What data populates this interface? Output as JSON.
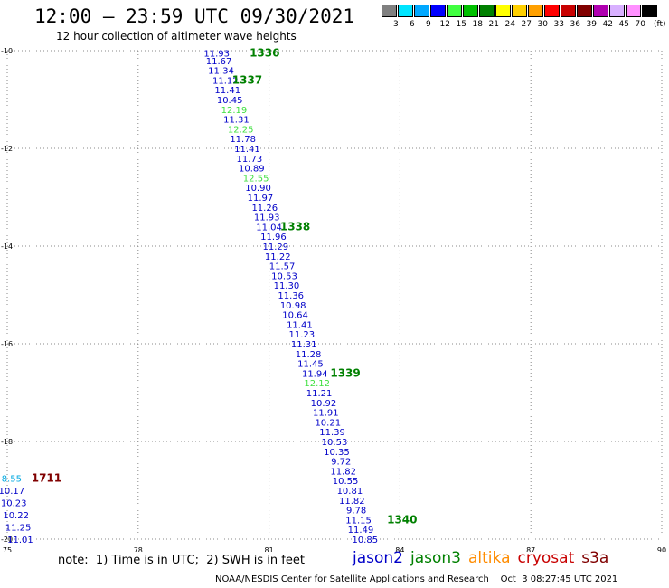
{
  "header": {
    "title": "12:00 – 23:59 UTC 09/30/2021",
    "subtitle": "12 hour collection of altimeter wave heights"
  },
  "colorbar": {
    "colors": [
      "#808080",
      "#00e5ff",
      "#00a8ff",
      "#0000ff",
      "#40ff40",
      "#00c000",
      "#008000",
      "#ffff00",
      "#ffd000",
      "#ffa000",
      "#ff0000",
      "#c80000",
      "#800000",
      "#b000b0",
      "#d8b0ff",
      "#ff90ff",
      "#000000"
    ],
    "labels": [
      "3",
      "6",
      "9",
      "12",
      "15",
      "18",
      "21",
      "24",
      "27",
      "30",
      "33",
      "36",
      "39",
      "42",
      "45",
      "70"
    ],
    "unit": "(ft)"
  },
  "chart_data": {
    "type": "scatter",
    "title": "12:00 – 23:59 UTC 09/30/2021",
    "xlim": [
      75,
      90
    ],
    "ylim": [
      -20,
      -10
    ],
    "xticks": [
      "75",
      "78",
      "81",
      "84",
      "87",
      "90"
    ],
    "yticks": [
      "-10",
      "-12",
      "-14",
      "-16",
      "-18",
      "-20"
    ],
    "grid": true,
    "points": [
      {
        "lon": 79.8,
        "lat": -10.05,
        "v": "11.93",
        "c": "#0000c8"
      },
      {
        "lon": 79.85,
        "lat": -10.2,
        "v": "11.67",
        "c": "#0000c8"
      },
      {
        "lon": 79.9,
        "lat": -10.4,
        "v": "11.34",
        "c": "#0000c8"
      },
      {
        "lon": 80.0,
        "lat": -10.6,
        "v": "11.12",
        "c": "#0000c8"
      },
      {
        "lon": 80.05,
        "lat": -10.8,
        "v": "11.41",
        "c": "#0000c8"
      },
      {
        "lon": 80.1,
        "lat": -11.0,
        "v": "10.45",
        "c": "#0000c8"
      },
      {
        "lon": 80.2,
        "lat": -11.2,
        "v": "12.19",
        "c": "#40e040"
      },
      {
        "lon": 80.25,
        "lat": -11.4,
        "v": "11.31",
        "c": "#0000c8"
      },
      {
        "lon": 80.35,
        "lat": -11.6,
        "v": "12.25",
        "c": "#40e040"
      },
      {
        "lon": 80.4,
        "lat": -11.8,
        "v": "11.78",
        "c": "#0000c8"
      },
      {
        "lon": 80.5,
        "lat": -12.0,
        "v": "11.41",
        "c": "#0000c8"
      },
      {
        "lon": 80.55,
        "lat": -12.2,
        "v": "11.73",
        "c": "#0000c8"
      },
      {
        "lon": 80.6,
        "lat": -12.4,
        "v": "10.89",
        "c": "#0000c8"
      },
      {
        "lon": 80.7,
        "lat": -12.6,
        "v": "12.55",
        "c": "#40e040"
      },
      {
        "lon": 80.75,
        "lat": -12.8,
        "v": "10.90",
        "c": "#0000c8"
      },
      {
        "lon": 80.8,
        "lat": -13.0,
        "v": "11.97",
        "c": "#0000c8"
      },
      {
        "lon": 80.9,
        "lat": -13.2,
        "v": "11.26",
        "c": "#0000c8"
      },
      {
        "lon": 80.95,
        "lat": -13.4,
        "v": "11.93",
        "c": "#0000c8"
      },
      {
        "lon": 81.0,
        "lat": -13.6,
        "v": "11.04",
        "c": "#0000c8"
      },
      {
        "lon": 81.1,
        "lat": -13.8,
        "v": "11.96",
        "c": "#0000c8"
      },
      {
        "lon": 81.15,
        "lat": -14.0,
        "v": "11.29",
        "c": "#0000c8"
      },
      {
        "lon": 81.2,
        "lat": -14.2,
        "v": "11.22",
        "c": "#0000c8"
      },
      {
        "lon": 81.3,
        "lat": -14.4,
        "v": "11.57",
        "c": "#0000c8"
      },
      {
        "lon": 81.35,
        "lat": -14.6,
        "v": "10.53",
        "c": "#0000c8"
      },
      {
        "lon": 81.4,
        "lat": -14.8,
        "v": "11.30",
        "c": "#0000c8"
      },
      {
        "lon": 81.5,
        "lat": -15.0,
        "v": "11.36",
        "c": "#0000c8"
      },
      {
        "lon": 81.55,
        "lat": -15.2,
        "v": "10.98",
        "c": "#0000c8"
      },
      {
        "lon": 81.6,
        "lat": -15.4,
        "v": "10.64",
        "c": "#0000c8"
      },
      {
        "lon": 81.7,
        "lat": -15.6,
        "v": "11.41",
        "c": "#0000c8"
      },
      {
        "lon": 81.75,
        "lat": -15.8,
        "v": "11.23",
        "c": "#0000c8"
      },
      {
        "lon": 81.8,
        "lat": -16.0,
        "v": "11.31",
        "c": "#0000c8"
      },
      {
        "lon": 81.9,
        "lat": -16.2,
        "v": "11.28",
        "c": "#0000c8"
      },
      {
        "lon": 81.95,
        "lat": -16.4,
        "v": "11.45",
        "c": "#0000c8"
      },
      {
        "lon": 82.05,
        "lat": -16.6,
        "v": "11.94",
        "c": "#0000c8"
      },
      {
        "lon": 82.1,
        "lat": -16.8,
        "v": "12.12",
        "c": "#40e040"
      },
      {
        "lon": 82.15,
        "lat": -17.0,
        "v": "11.21",
        "c": "#0000c8"
      },
      {
        "lon": 82.25,
        "lat": -17.2,
        "v": "10.92",
        "c": "#0000c8"
      },
      {
        "lon": 82.3,
        "lat": -17.4,
        "v": "11.91",
        "c": "#0000c8"
      },
      {
        "lon": 82.35,
        "lat": -17.6,
        "v": "10.21",
        "c": "#0000c8"
      },
      {
        "lon": 82.45,
        "lat": -17.8,
        "v": "11.39",
        "c": "#0000c8"
      },
      {
        "lon": 82.5,
        "lat": -18.0,
        "v": "10.53",
        "c": "#0000c8"
      },
      {
        "lon": 82.55,
        "lat": -18.2,
        "v": "10.35",
        "c": "#0000c8"
      },
      {
        "lon": 82.65,
        "lat": -18.4,
        "v": "9.72",
        "c": "#0000c8"
      },
      {
        "lon": 82.7,
        "lat": -18.6,
        "v": "11.82",
        "c": "#0000c8"
      },
      {
        "lon": 82.75,
        "lat": -18.8,
        "v": "10.55",
        "c": "#0000c8"
      },
      {
        "lon": 82.85,
        "lat": -19.0,
        "v": "10.81",
        "c": "#0000c8"
      },
      {
        "lon": 82.9,
        "lat": -19.2,
        "v": "11.82",
        "c": "#0000c8"
      },
      {
        "lon": 83.0,
        "lat": -19.4,
        "v": "9.78",
        "c": "#0000c8"
      },
      {
        "lon": 83.05,
        "lat": -19.6,
        "v": "11.15",
        "c": "#0000c8"
      },
      {
        "lon": 83.1,
        "lat": -19.8,
        "v": "11.49",
        "c": "#0000c8"
      },
      {
        "lon": 83.2,
        "lat": -20.0,
        "v": "10.85",
        "c": "#0000c8"
      },
      {
        "lon": 75.1,
        "lat": -18.75,
        "v": "8.55",
        "c": "#00a8e0"
      },
      {
        "lon": 75.1,
        "lat": -19.0,
        "v": "10.17",
        "c": "#0000c8"
      },
      {
        "lon": 75.15,
        "lat": -19.25,
        "v": "10.23",
        "c": "#0000c8"
      },
      {
        "lon": 75.2,
        "lat": -19.5,
        "v": "10.22",
        "c": "#0000c8"
      },
      {
        "lon": 75.25,
        "lat": -19.75,
        "v": "11.25",
        "c": "#0000c8"
      },
      {
        "lon": 75.3,
        "lat": -20.0,
        "v": "11.01",
        "c": "#0000c8"
      }
    ],
    "cycles": [
      {
        "lon": 80.9,
        "lat": -10.05,
        "label": "1336",
        "c": "#008000"
      },
      {
        "lon": 80.5,
        "lat": -10.6,
        "label": "1337",
        "c": "#008000"
      },
      {
        "lon": 81.6,
        "lat": -13.6,
        "label": "1338",
        "c": "#008000"
      },
      {
        "lon": 82.75,
        "lat": -16.6,
        "label": "1339",
        "c": "#008000"
      },
      {
        "lon": 84.05,
        "lat": -19.6,
        "label": "1340",
        "c": "#008000"
      },
      {
        "lon": 75.9,
        "lat": -18.75,
        "label": "1711",
        "c": "#800000"
      }
    ]
  },
  "footer": {
    "note": "note:  1) Time is in UTC;  2) SWH is in feet",
    "legend": [
      {
        "label": "jason2",
        "color": "#0000c8"
      },
      {
        "label": "jason3",
        "color": "#008000"
      },
      {
        "label": "altika",
        "color": "#ff8c00"
      },
      {
        "label": "cryosat",
        "color": "#c80000"
      },
      {
        "label": "s3a",
        "color": "#800000"
      }
    ],
    "credit": "NOAA/NESDIS Center for Satellite Applications and Research    Oct  3 08:27:45 UTC 2021"
  }
}
